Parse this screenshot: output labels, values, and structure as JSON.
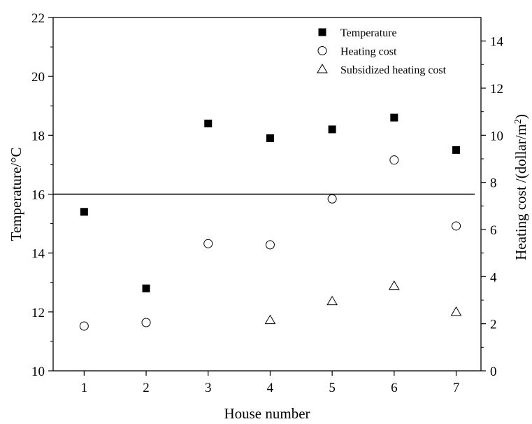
{
  "chart_data": {
    "type": "scatter",
    "title": "",
    "xlabel": "House number",
    "ylabel": "Temperature/°C",
    "y2label": "Heating cost /(dollar/m",
    "y2label_sup": "2",
    "y2label_close": ")",
    "x": [
      1,
      2,
      3,
      4,
      5,
      6,
      7
    ],
    "xlim": [
      0.5,
      7.4
    ],
    "ylim": [
      10,
      22
    ],
    "y2lim": [
      0,
      15
    ],
    "xticks": [
      "1",
      "2",
      "3",
      "4",
      "5",
      "6",
      "7"
    ],
    "yticks": [
      "10",
      "12",
      "14",
      "16",
      "18",
      "20",
      "22"
    ],
    "y2ticks": [
      "0",
      "2",
      "4",
      "6",
      "8",
      "10",
      "12",
      "14"
    ],
    "reference_line": {
      "axis": "y",
      "value": 16
    },
    "legend_position": "top-right",
    "series": [
      {
        "name": "Temperature",
        "axis": "left",
        "marker": "square-filled",
        "color": "#000000",
        "x": [
          1,
          2,
          3,
          4,
          5,
          6,
          7
        ],
        "values": [
          15.4,
          12.8,
          18.4,
          17.9,
          18.2,
          18.6,
          17.5
        ]
      },
      {
        "name": "Heating cost",
        "axis": "right",
        "marker": "circle-open",
        "color": "#000000",
        "x": [
          1,
          2,
          3,
          4,
          5,
          6,
          7
        ],
        "values": [
          1.9,
          2.05,
          5.4,
          5.35,
          7.3,
          8.95,
          6.15
        ]
      },
      {
        "name": "Subsidized heating cost",
        "axis": "right",
        "marker": "triangle-open",
        "color": "#000000",
        "x": [
          4,
          5,
          6,
          7
        ],
        "values": [
          2.15,
          2.95,
          3.6,
          2.5
        ]
      }
    ]
  }
}
